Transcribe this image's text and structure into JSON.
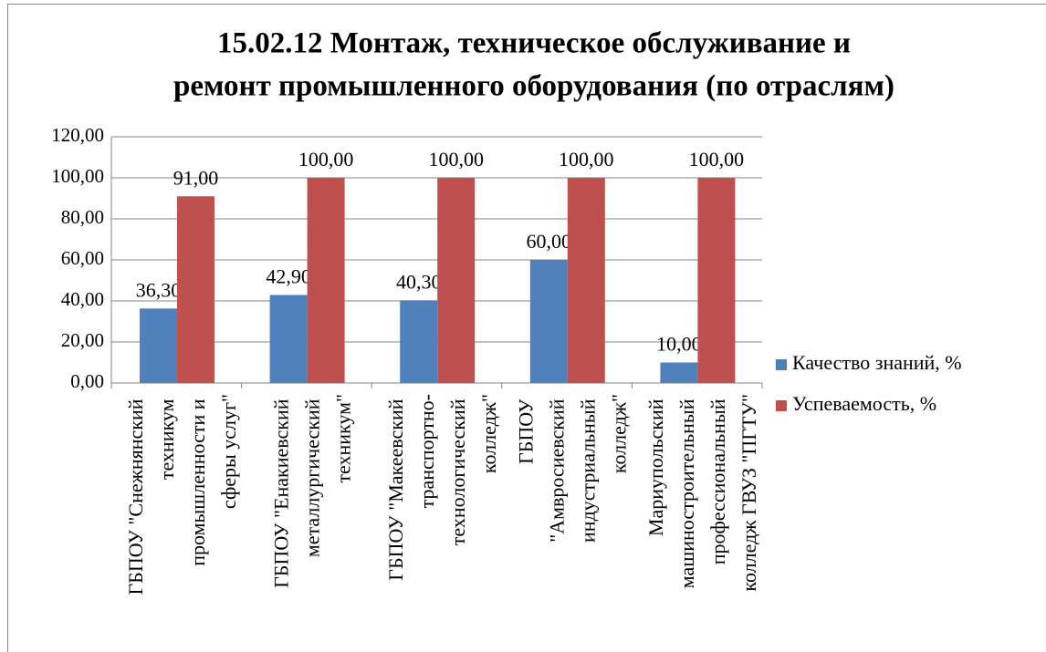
{
  "chart_data": {
    "type": "bar",
    "title": [
      "15.02.12 Монтаж, техническое обслуживание и",
      "ремонт промышленного оборудования (по отраслям)"
    ],
    "categories": [
      "ГБПОУ \"Снежнянский техникум промышленности и сферы услуг\"",
      "ГБПОУ \"Енакиевский металлургический техникум\"",
      "ГБПОУ \"Макеевский транспортно-технологический колледж\"",
      "ГБПОУ \"Амвросиевский индустриальный колледж\"",
      "Мариупольский машиностроительный профессиональный колледж ГВУЗ \"ПГТУ\""
    ],
    "series": [
      {
        "name": "Качество знаний, %",
        "color": "#4f81bd",
        "values": [
          36.3,
          42.9,
          40.3,
          60,
          10
        ],
        "value_labels": [
          "36,30",
          "42,90",
          "40,30",
          "60,00",
          "10,00"
        ]
      },
      {
        "name": "Успеваемость, %",
        "color": "#c0504d",
        "values": [
          91,
          100,
          100,
          100,
          100
        ],
        "value_labels": [
          "91,00",
          "100,00",
          "100,00",
          "100,00",
          "100,00"
        ]
      }
    ],
    "ylim": [
      0,
      120
    ],
    "yticks": [
      {
        "value": 0,
        "label": "0,00"
      },
      {
        "value": 20,
        "label": "20,00"
      },
      {
        "value": 40,
        "label": "40,00"
      },
      {
        "value": 60,
        "label": "60,00"
      },
      {
        "value": 80,
        "label": "80,00"
      },
      {
        "value": 100,
        "label": "100,00"
      },
      {
        "value": 120,
        "label": "120,00"
      }
    ],
    "grid": true,
    "legend": "right"
  }
}
